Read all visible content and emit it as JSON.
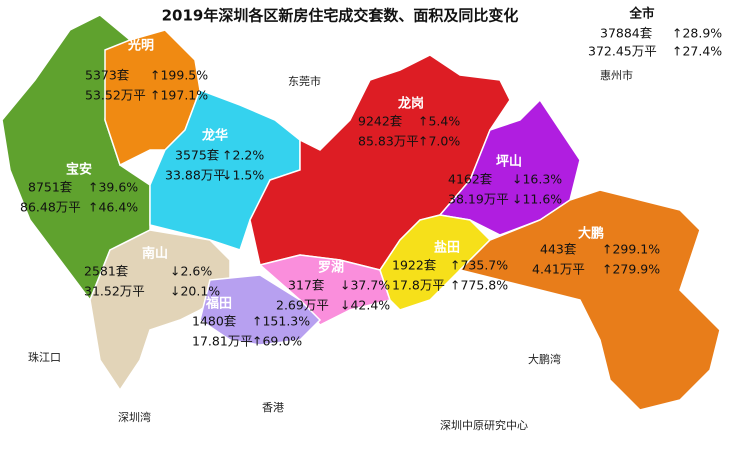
{
  "title": "2019年深圳各区新房住宅成交套数、面积及同比变化",
  "total": {
    "name": "全市",
    "units": "37884套",
    "units_change": "↑28.9%",
    "units_change_color": "#e00000",
    "area": "372.45万平",
    "area_change": "↑27.4%",
    "area_change_color": "#e00000"
  },
  "districts": [
    {
      "name": "光明",
      "units": "5373套",
      "units_change": "↑199.5%",
      "units_change_color": "#e00000",
      "area": "53.52万平",
      "area_change": "↑197.1%",
      "area_change_color": "#e00000"
    },
    {
      "name": "龙华",
      "units": "3575套",
      "units_change": "↑2.2%",
      "units_change_color": "#e00000",
      "area": "33.88万平",
      "area_change": "↓1.5%",
      "area_change_color": "#1a9a3a"
    },
    {
      "name": "宝安",
      "units": "8751套",
      "units_change": "↑39.6%",
      "units_change_color": "#e00000",
      "area": "86.48万平",
      "area_change": "↑46.4%",
      "area_change_color": "#e00000"
    },
    {
      "name": "龙岗",
      "units": "9242套",
      "units_change": "↑5.4%",
      "units_change_color": "#e00000",
      "area": "85.83万平",
      "area_change": "↑7.0%",
      "area_change_color": "#e00000"
    },
    {
      "name": "坪山",
      "units": "4162套",
      "units_change": "↓16.3%",
      "units_change_color": "#1a9a3a",
      "area": "38.19万平",
      "area_change": "↓11.6%",
      "area_change_color": "#1a9a3a"
    },
    {
      "name": "大鹏",
      "units": "443套",
      "units_change": "↑299.1%",
      "units_change_color": "#e00000",
      "area": "4.41万平",
      "area_change": "↑279.9%",
      "area_change_color": "#e00000"
    },
    {
      "name": "盐田",
      "units": "1922套",
      "units_change": "↑735.7%",
      "units_change_color": "#e00000",
      "area": "17.8万平",
      "area_change": "↑775.8%",
      "area_change_color": "#e00000"
    },
    {
      "name": "南山",
      "units": "2581套",
      "units_change": "↓2.6%",
      "units_change_color": "#1a9a3a",
      "area": "31.52万平",
      "area_change": "↓20.1%",
      "area_change_color": "#1a9a3a"
    },
    {
      "name": "罗湖",
      "units": "317套",
      "units_change": "↓37.7%",
      "units_change_color": "#1a9a3a",
      "area": "2.69万平",
      "area_change": "↓42.4%",
      "area_change_color": "#1a9a3a"
    },
    {
      "name": "福田",
      "units": "1480套",
      "units_change": "↑151.3%",
      "units_change_color": "#e00000",
      "area": "17.81万平",
      "area_change": "↑69.0%",
      "area_change_color": "#e00000"
    }
  ],
  "places": [
    "东莞市",
    "惠州市",
    "珠江口",
    "深圳湾",
    "香港",
    "大鹏湾"
  ],
  "source": "深圳中原研究中心"
}
